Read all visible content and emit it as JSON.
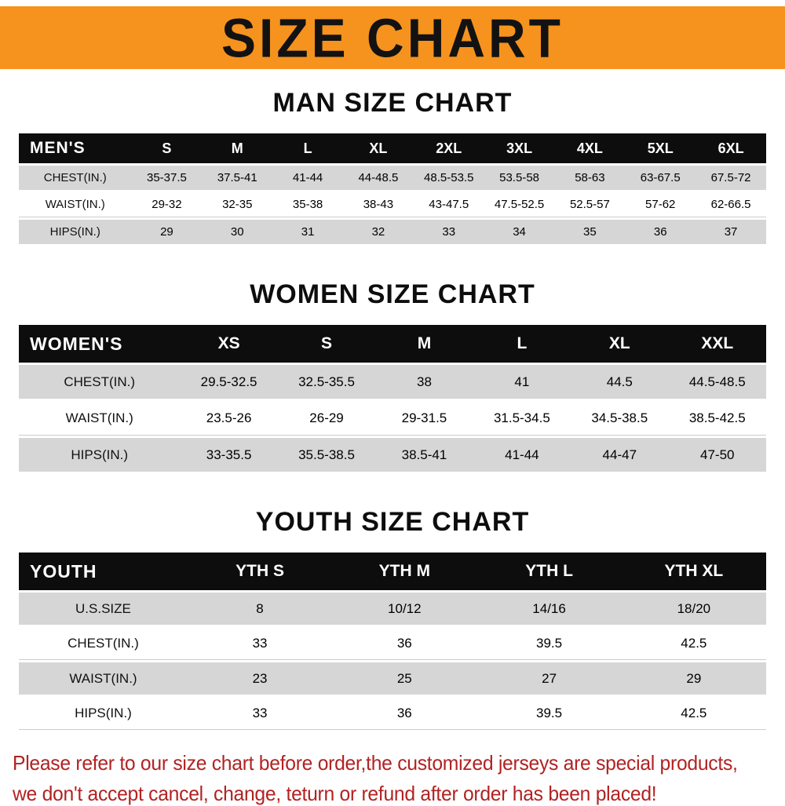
{
  "banner": {
    "title": "SIZE CHART"
  },
  "sections": [
    {
      "id": "mens",
      "heading": "MAN SIZE CHART",
      "table_title": "MEN'S",
      "columns": [
        "S",
        "M",
        "L",
        "XL",
        "2XL",
        "3XL",
        "4XL",
        "5XL",
        "6XL"
      ],
      "rows": [
        {
          "label": "CHEST(IN.)",
          "values": [
            "35-37.5",
            "37.5-41",
            "41-44",
            "44-48.5",
            "48.5-53.5",
            "53.5-58",
            "58-63",
            "63-67.5",
            "67.5-72"
          ]
        },
        {
          "label": "WAIST(IN.)",
          "values": [
            "29-32",
            "32-35",
            "35-38",
            "38-43",
            "43-47.5",
            "47.5-52.5",
            "52.5-57",
            "57-62",
            "62-66.5"
          ]
        },
        {
          "label": "HIPS(IN.)",
          "values": [
            "29",
            "30",
            "31",
            "32",
            "33",
            "34",
            "35",
            "36",
            "37"
          ]
        }
      ]
    },
    {
      "id": "womens",
      "heading": "WOMEN SIZE CHART",
      "table_title": "WOMEN'S",
      "columns": [
        "XS",
        "S",
        "M",
        "L",
        "XL",
        "XXL"
      ],
      "rows": [
        {
          "label": "CHEST(IN.)",
          "values": [
            "29.5-32.5",
            "32.5-35.5",
            "38",
            "41",
            "44.5",
            "44.5-48.5"
          ]
        },
        {
          "label": "WAIST(IN.)",
          "values": [
            "23.5-26",
            "26-29",
            "29-31.5",
            "31.5-34.5",
            "34.5-38.5",
            "38.5-42.5"
          ]
        },
        {
          "label": "HIPS(IN.)",
          "values": [
            "33-35.5",
            "35.5-38.5",
            "38.5-41",
            "41-44",
            "44-47",
            "47-50"
          ]
        }
      ]
    },
    {
      "id": "youth",
      "heading": "YOUTH SIZE CHART",
      "table_title": "YOUTH",
      "columns": [
        "YTH S",
        "YTH M",
        "YTH L",
        "YTH XL"
      ],
      "rows": [
        {
          "label": "U.S.SIZE",
          "values": [
            "8",
            "10/12",
            "14/16",
            "18/20"
          ]
        },
        {
          "label": "CHEST(IN.)",
          "values": [
            "33",
            "36",
            "39.5",
            "42.5"
          ]
        },
        {
          "label": "WAIST(IN.)",
          "values": [
            "23",
            "25",
            "27",
            "29"
          ]
        },
        {
          "label": "HIPS(IN.)",
          "values": [
            "33",
            "36",
            "39.5",
            "42.5"
          ]
        }
      ]
    }
  ],
  "footer": {
    "lines": [
      "Please refer to our size chart before order,the customized jerseys are special products,",
      "we don't accept cancel, change, teturn or refund after order has been placed!"
    ]
  },
  "colors": {
    "banner_bg": "#f6921e",
    "table_header_bg": "#0d0d0d",
    "table_header_text": "#ffffff",
    "row_alt_bg": "#d6d6d6",
    "notice_text": "#b22222"
  }
}
